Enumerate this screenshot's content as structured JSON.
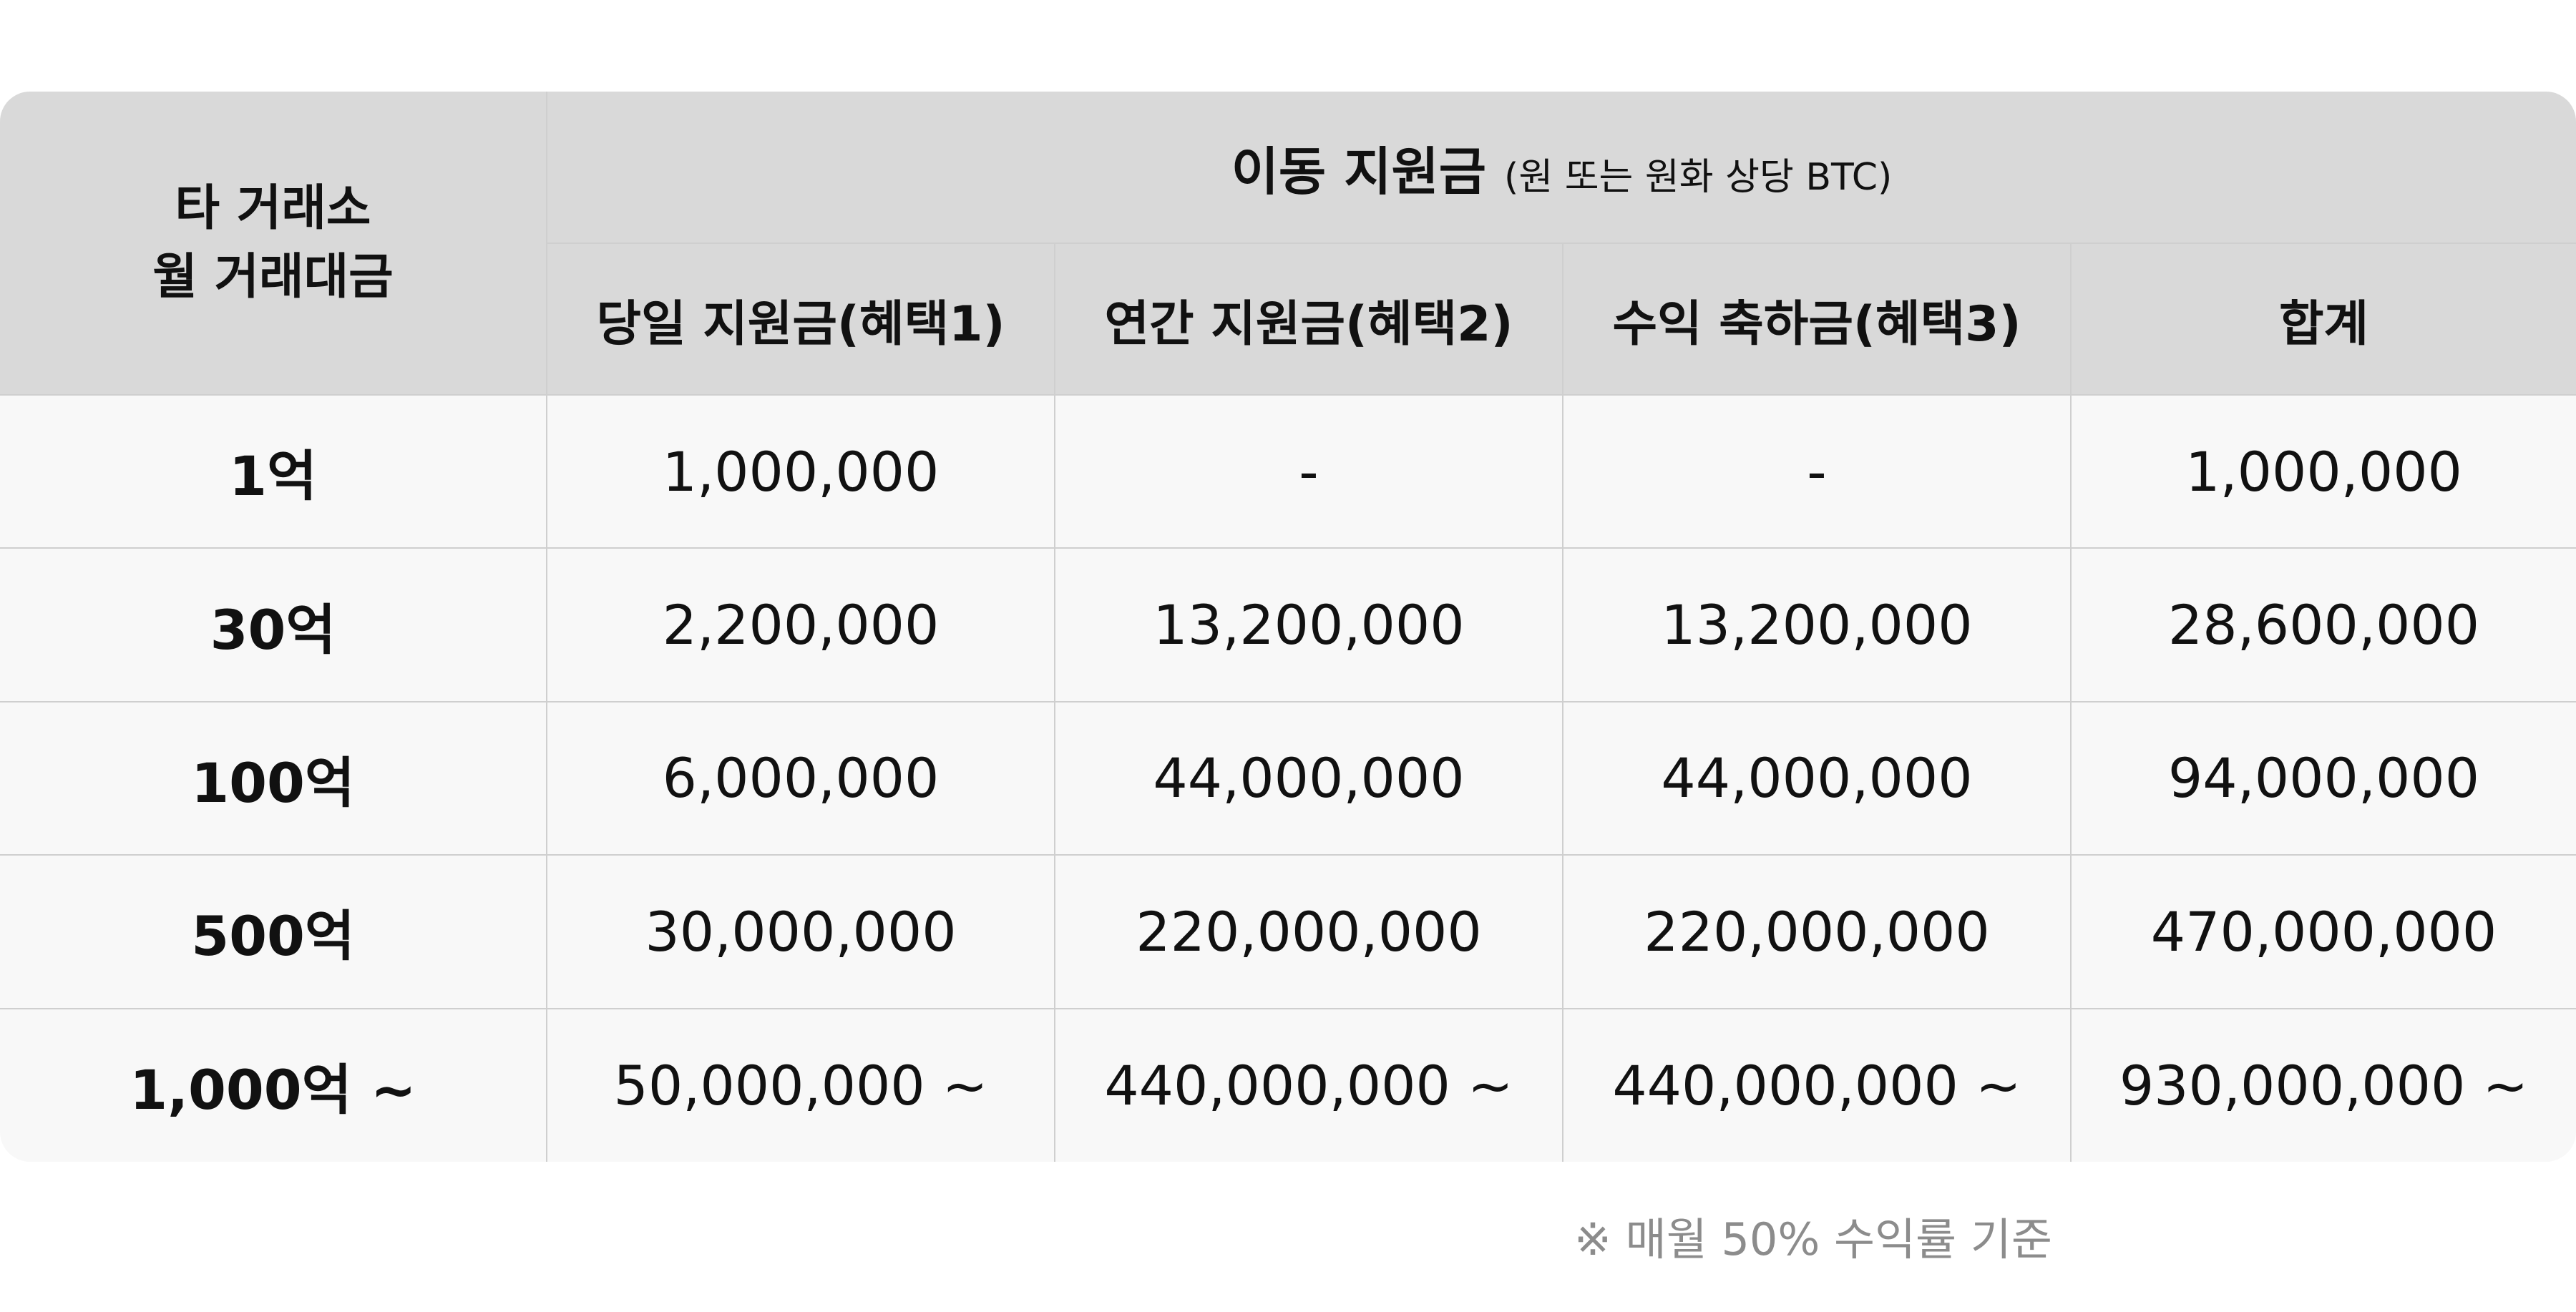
{
  "table": {
    "corner_header": [
      "타 거래소",
      "월 거래대금"
    ],
    "group_header": {
      "title": "이동 지원금",
      "subtitle": "(원 또는 원화 상당 BTC)"
    },
    "columns": [
      "당일 지원금(혜택1)",
      "연간 지원금(혜택2)",
      "수익 축하금(혜택3)",
      "합계"
    ],
    "rows": [
      {
        "label": "1억",
        "values": [
          "1,000,000",
          "-",
          "-",
          "1,000,000"
        ]
      },
      {
        "label": "30억",
        "values": [
          "2,200,000",
          "13,200,000",
          "13,200,000",
          "28,600,000"
        ]
      },
      {
        "label": "100억",
        "values": [
          "6,000,000",
          "44,000,000",
          "44,000,000",
          "94,000,000"
        ]
      },
      {
        "label": "500억",
        "values": [
          "30,000,000",
          "220,000,000",
          "220,000,000",
          "470,000,000"
        ]
      },
      {
        "label": "1,000억 ~",
        "values": [
          "50,000,000 ~",
          "440,000,000 ~",
          "440,000,000 ~",
          "930,000,000 ~"
        ]
      }
    ]
  },
  "footnote": "※ 매월 50% 수익률 기준",
  "colors": {
    "header_bg": "#d9d9d9",
    "body_bg": "#f8f8f8",
    "border": "#cfcfcf",
    "footnote_text": "#8c8c8c"
  }
}
